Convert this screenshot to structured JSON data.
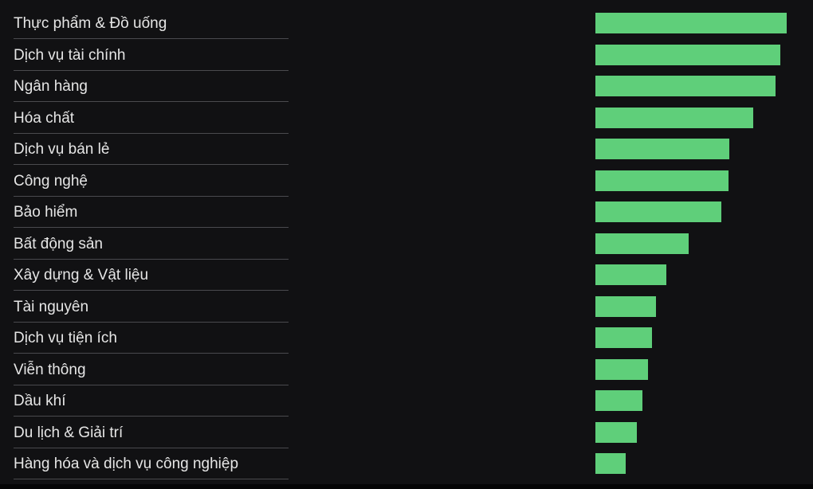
{
  "chart_data": {
    "type": "bar",
    "orientation": "horizontal",
    "categories": [
      "Thực phẩm & Đồ uống",
      "Dịch vụ tài chính",
      "Ngân hàng",
      "Hóa chất",
      "Dịch vụ bán lẻ",
      "Công nghệ",
      "Bảo hiểm",
      "Bất động sản",
      "Xây dựng & Vật liệu",
      "Tài nguyên",
      "Dịch vụ tiện ích",
      "Viễn thông",
      "Dầu khí",
      "Du lịch & Giải trí",
      "Hàng hóa và dịch vụ công nghiệp"
    ],
    "values": [
      100,
      96.5,
      94.2,
      82.5,
      70,
      69.6,
      66,
      48.8,
      37,
      31.6,
      29.5,
      27.4,
      24.6,
      21.6,
      15.8
    ],
    "xlim": [
      0,
      100
    ],
    "bar_color": "#5fcf7a",
    "grid": false,
    "legend": false
  },
  "colors": {
    "background": "#111113",
    "label_text": "#e6e6e6",
    "divider": "#4a4a4e"
  }
}
